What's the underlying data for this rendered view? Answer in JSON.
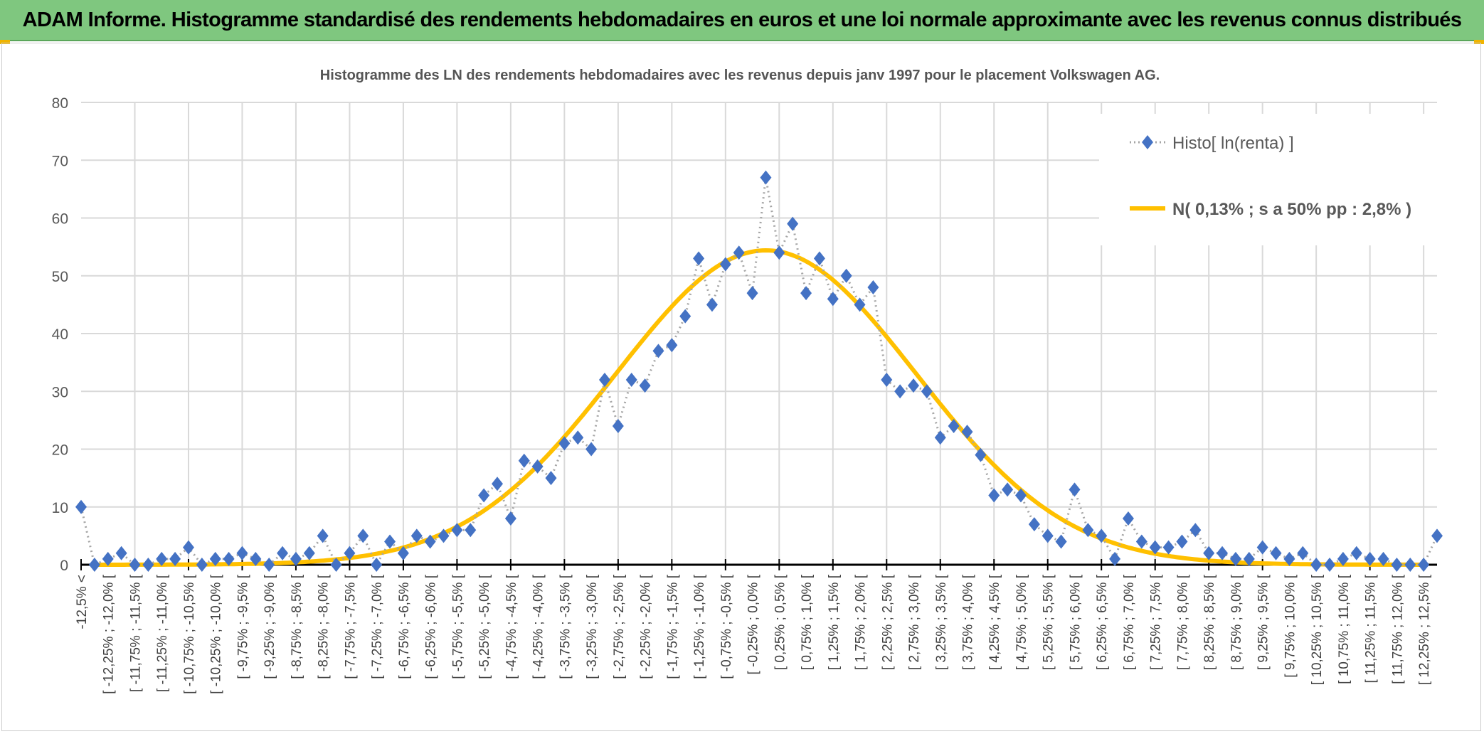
{
  "header": {
    "title": "ADAM Informe. Histogramme standardisé des rendements hebdomadaires en euros et une loi normale approximante avec les revenus connus distribués"
  },
  "colors": {
    "header_bg": "#7fc77f",
    "series_marker": "#4472c4",
    "series_line": "#a5a5a5",
    "normal_curve": "#ffc000",
    "accent_corner": "#f0b400"
  },
  "chart_data": {
    "type": "line",
    "title": "Histogramme des LN des rendements hebdomadaires avec les revenus depuis janv 1997 pour le placement Volkswagen AG.",
    "xlabel": "",
    "ylabel": "",
    "ylim": [
      0,
      80
    ],
    "yticks": [
      0,
      10,
      20,
      30,
      40,
      50,
      60,
      70,
      80
    ],
    "grid": true,
    "legend_position": "top-right",
    "tick_labels": [
      "-12,5% <",
      "[ -12,25% ; -12,0% [",
      "[ -11,75% ; -11,5% [",
      "[ -11,25% ; -11,0% [",
      "[ -10,75% ; -10,5% [",
      "[ -10,25% ; -10,0% [",
      "[ -9,75% ; -9,5% [",
      "[ -9,25% ; -9,0% [",
      "[ -8,75% ; -8,5% [",
      "[ -8,25% ; -8,0% [",
      "[ -7,75% ; -7,5% [",
      "[ -7,25% ; -7,0% [",
      "[ -6,75% ; -6,5% [",
      "[ -6,25% ; -6,0% [",
      "[ -5,75% ; -5,5% [",
      "[ -5,25% ; -5,0% [",
      "[ -4,75% ; -4,5% [",
      "[ -4,25% ; -4,0% [",
      "[ -3,75% ; -3,5% [",
      "[ -3,25% ; -3,0% [",
      "[ -2,75% ; -2,5% [",
      "[ -2,25% ; -2,0% [",
      "[ -1,75% ; -1,5% [",
      "[ -1,25% ; -1,0% [",
      "[ -0,75% ; -0,5% [",
      "[ -0,25% ; 0,0% [",
      "[ 0,25% ; 0,5% [",
      "[ 0,75% ; 1,0% [",
      "[ 1,25% ; 1,5% [",
      "[ 1,75% ; 2,0% [",
      "[ 2,25% ; 2,5% [",
      "[ 2,75% ; 3,0% [",
      "[ 3,25% ; 3,5% [",
      "[ 3,75% ; 4,0% [",
      "[ 4,25% ; 4,5% [",
      "[ 4,75% ; 5,0% [",
      "[ 5,25% ; 5,5% [",
      "[ 5,75% ; 6,0% [",
      "[ 6,25% ; 6,5% [",
      "[ 6,75% ; 7,0% [",
      "[ 7,25% ; 7,5% [",
      "[ 7,75% ; 8,0% [",
      "[ 8,25% ; 8,5% [",
      "[ 8,75% ; 9,0% [",
      "[ 9,25% ; 9,5% [",
      "[ 9,75% ; 10,0% [",
      "[ 10,25% ; 10,5% [",
      "[ 10,75% ; 11,0% [",
      "[ 11,25% ; 11,5% [",
      "[ 11,75% ; 12,0% [",
      "[ 12,25% ; 12,5% ["
    ],
    "series": [
      {
        "name": "Histo[ ln(renta) ]",
        "style": "dotted line with diamond markers",
        "values": [
          10,
          0,
          1,
          2,
          0,
          0,
          1,
          1,
          3,
          0,
          1,
          1,
          2,
          1,
          0,
          2,
          1,
          2,
          5,
          0,
          2,
          5,
          0,
          4,
          2,
          5,
          4,
          5,
          6,
          6,
          12,
          14,
          8,
          18,
          17,
          15,
          21,
          22,
          20,
          32,
          24,
          32,
          31,
          37,
          38,
          43,
          53,
          45,
          52,
          54,
          47,
          67,
          54,
          59,
          47,
          53,
          46,
          50,
          45,
          48,
          32,
          30,
          31,
          30,
          22,
          24,
          23,
          19,
          12,
          13,
          12,
          7,
          5,
          4,
          13,
          6,
          5,
          1,
          8,
          4,
          3,
          3,
          4,
          6,
          2,
          2,
          1,
          1,
          3,
          2,
          1,
          2,
          0,
          0,
          1,
          2,
          1,
          1,
          0,
          0,
          0,
          5
        ]
      },
      {
        "name": "N( 0,13% ; s a 50% pp : 2,8% )",
        "style": "smooth line",
        "mean_percent": 0.13,
        "sd_percent": 2.8,
        "peak": 54.4
      }
    ]
  }
}
